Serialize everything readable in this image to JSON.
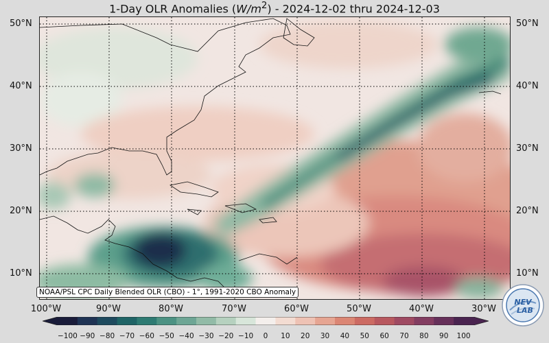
{
  "title": {
    "prefix": "1-Day OLR Anomalies (",
    "unit": "W/m",
    "unit_sup": "2",
    "suffix": ") - 2024-12-02 thru 2024-12-03"
  },
  "lat_labels": [
    "50°N",
    "40°N",
    "30°N",
    "20°N",
    "10°N"
  ],
  "lon_labels": [
    "100°W",
    "90°W",
    "80°W",
    "70°W",
    "60°W",
    "50°W",
    "40°W",
    "30°W"
  ],
  "credit": "NOAA/PSL CPC Daily Blended OLR (CBO) - 1°, 1991-2020 CBO Anomaly",
  "colorbar": {
    "ticks": [
      "−100",
      "−90",
      "−80",
      "−70",
      "−60",
      "−50",
      "−40",
      "−30",
      "−20",
      "−10",
      "0",
      "10",
      "20",
      "30",
      "40",
      "50",
      "60",
      "70",
      "80",
      "90",
      "100"
    ],
    "colors": [
      "#1a1c3a",
      "#1f3354",
      "#1e4a5e",
      "#1f6466",
      "#2e7b73",
      "#4c9283",
      "#6ea695",
      "#92bba7",
      "#b6d1bf",
      "#d8e6da",
      "#f4efec",
      "#f3dcd2",
      "#eec2b4",
      "#e6a592",
      "#db8674",
      "#cc6b63",
      "#b8585f",
      "#9f4a62",
      "#833d61",
      "#66305a",
      "#4a2450"
    ]
  },
  "logo": {
    "text_top": "NEV",
    "text_bottom": "LAB"
  },
  "map": {
    "extent_lon": [
      -100,
      -25
    ],
    "extent_lat": [
      5,
      52
    ],
    "grid_lons": [
      -100,
      -90,
      -80,
      -70,
      -60,
      -50,
      -40,
      -30
    ],
    "grid_lats": [
      50,
      40,
      30,
      20,
      10
    ]
  }
}
